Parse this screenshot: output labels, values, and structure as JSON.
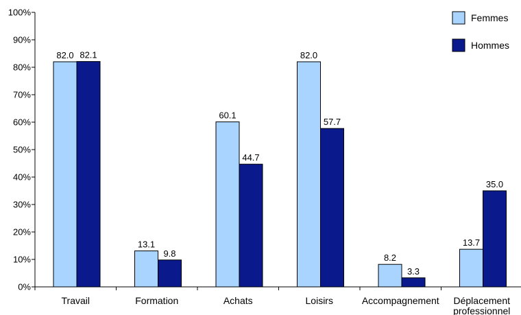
{
  "chart_data": {
    "type": "bar",
    "categories": [
      "Travail",
      "Formation",
      "Achats",
      "Loisirs",
      "Accompagnement",
      [
        "Déplacement",
        "professionnel"
      ]
    ],
    "series": [
      {
        "name": "Femmes",
        "color": "#a8d4ff",
        "values": [
          82.0,
          13.1,
          60.1,
          82.0,
          8.2,
          13.7
        ]
      },
      {
        "name": "Hommes",
        "color": "#0a1a8c",
        "values": [
          82.1,
          9.8,
          44.7,
          57.7,
          3.3,
          35.0
        ]
      }
    ],
    "ylim": [
      0,
      100
    ],
    "yticks": [
      "0%",
      "10%",
      "20%",
      "30%",
      "40%",
      "50%",
      "60%",
      "70%",
      "80%",
      "90%",
      "100%"
    ],
    "legend_position": "top-right",
    "grid": false
  }
}
